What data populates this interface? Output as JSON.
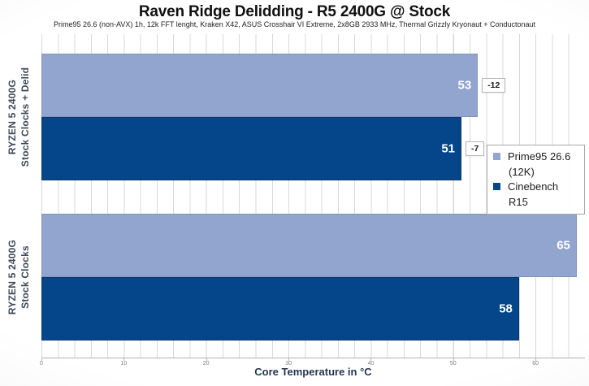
{
  "header": {
    "title": "Raven Ridge Delidding - R5 2400G @ Stock",
    "subtitle": "Prime95 26.6 (non-AVX) 1h, 12k FFT lenght, Kraken X42, ASUS Crosshair VI Extreme,  2x8GB 2933 MHz, Thermal Grizzly Kryonaut + Conductonaut"
  },
  "chart_data": {
    "type": "bar",
    "orientation": "horizontal",
    "title": "Raven Ridge Delidding - R5 2400G @ Stock",
    "subtitle": "Prime95 26.6 (non-AVX) 1h, 12k FFT lenght, Kraken X42, ASUS Crosshair VI Extreme,  2x8GB 2933 MHz, Thermal Grizzly Kryonaut + Conductonaut",
    "categories": [
      "RYZEN 5 2400G Stock Clocks + Delid",
      "RYZEN 5 2400G Stock Clocks"
    ],
    "category_lines": [
      [
        "RYZEN 5 2400G",
        "Stock Clocks + Delid"
      ],
      [
        "RYZEN 5 2400G",
        "Stock Clocks"
      ]
    ],
    "series": [
      {
        "name": "Prime95 26.6 (12K)",
        "color": "#92a5ce",
        "values": [
          53,
          65
        ]
      },
      {
        "name": "Cinebench R15",
        "color": "#05458a",
        "values": [
          51,
          58
        ]
      }
    ],
    "annotations": [
      {
        "category": "RYZEN 5 2400G Stock Clocks + Delid",
        "series": "Prime95 26.6 (12K)",
        "text": "-12"
      },
      {
        "category": "RYZEN 5 2400G Stock Clocks + Delid",
        "series": "Cinebench R15",
        "text": "-7"
      }
    ],
    "xlabel": "Core Temperature in °C",
    "x_ticks": [
      0,
      10,
      20,
      30,
      40,
      50,
      60
    ],
    "xlim": [
      0,
      66
    ],
    "gridlines": {
      "visible": true,
      "minor_interval": 2
    },
    "legend_position": "middle-right"
  },
  "legend": {
    "items": [
      {
        "label": "Prime95 26.6 (12K)",
        "color": "#92a5ce"
      },
      {
        "label": "Cinebench R15",
        "color": "#05458a"
      }
    ]
  },
  "colors": {
    "series_light": "#92a5ce",
    "series_dark": "#05458a",
    "gridline": "#d9d9d9",
    "axis_line": "#b3b3b3",
    "tick_text": "#7f7f7f",
    "bar_value_text": "#ffffff",
    "category_text": "#3d4856",
    "xlabel_text": "#24364e"
  }
}
